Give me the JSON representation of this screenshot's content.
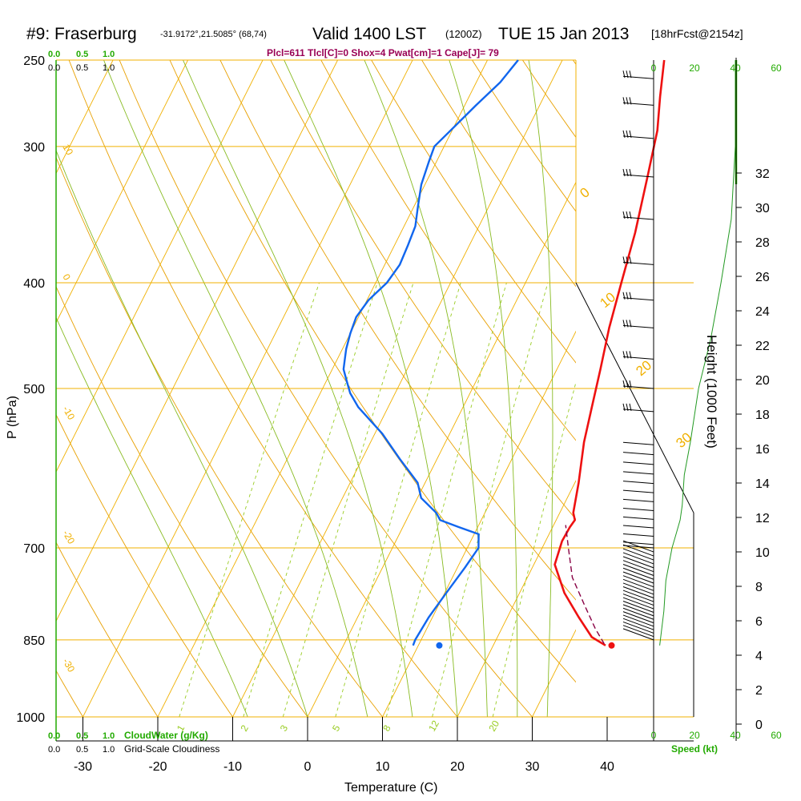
{
  "header": {
    "site": "#9: Fraserburg",
    "coords": "-31.9172°,21.5085° (68,74)",
    "valid": "Valid 1400 LST",
    "utc": "(1200Z)",
    "date": "TUE 15 Jan 2013",
    "fcst": "[18hrFcst@2154z]",
    "params": "Plcl=611 Tlcl[C]=0 Shox=4 Pwat[cm]=1 Cape[J]= 79"
  },
  "colors": {
    "temperature": "#ee1111",
    "dewpoint": "#1166ee",
    "parcel": "#880044",
    "isotherm_isobar": "#f0b000",
    "dry_adiabat": "#e8a000",
    "moist_adiabat": "#88bb22",
    "mixing_ratio": "#99cc22",
    "green_text": "#22aa00",
    "params_text": "#990055"
  },
  "chart_data": {
    "type": "line",
    "xlabel": "Temperature (C)",
    "ylabel": "P (hPa)",
    "y2label": "Height (1000 Feet)",
    "x_ticks": [
      "-30",
      "-20",
      "-10",
      "0",
      "10",
      "20",
      "30",
      "40"
    ],
    "x_tick_values": [
      -30,
      -20,
      -10,
      0,
      10,
      20,
      30,
      40
    ],
    "p_ticks": [
      "250",
      "300",
      "400",
      "500",
      "700",
      "850",
      "1000"
    ],
    "p_tick_values": [
      250,
      300,
      400,
      500,
      700,
      850,
      1000
    ],
    "height_ticks": [
      "0",
      "2",
      "4",
      "6",
      "8",
      "10",
      "12",
      "14",
      "16",
      "18",
      "20",
      "22",
      "24",
      "26",
      "28",
      "30",
      "32"
    ],
    "height_tick_values": [
      0,
      2,
      4,
      6,
      8,
      10,
      12,
      14,
      16,
      18,
      20,
      22,
      24,
      26,
      28,
      30,
      32
    ],
    "series": [
      {
        "name": "Temperature",
        "points": [
          [
            35.0,
            860
          ],
          [
            32.6,
            845
          ],
          [
            29.5,
            810
          ],
          [
            26.0,
            770
          ],
          [
            22.8,
            725
          ],
          [
            22.2,
            690
          ],
          [
            22.3,
            670
          ],
          [
            22.5,
            660
          ],
          [
            21.8,
            650
          ],
          [
            20.5,
            610
          ],
          [
            18.5,
            560
          ],
          [
            17.2,
            520
          ],
          [
            15.8,
            480
          ],
          [
            14.2,
            440
          ],
          [
            12.8,
            400
          ],
          [
            11.3,
            360
          ],
          [
            9.2,
            320
          ],
          [
            7.4,
            290
          ],
          [
            5.5,
            270
          ],
          [
            3.6,
            250
          ]
        ]
      },
      {
        "name": "Dewpoint",
        "points": [
          [
            9.3,
            860
          ],
          [
            9.2,
            850
          ],
          [
            9.5,
            810
          ],
          [
            10.2,
            770
          ],
          [
            11.0,
            730
          ],
          [
            11.5,
            700
          ],
          [
            10.6,
            680
          ],
          [
            7.5,
            670
          ],
          [
            4.5,
            660
          ],
          [
            3.5,
            650
          ],
          [
            0.5,
            630
          ],
          [
            -1.0,
            610
          ],
          [
            -5.0,
            580
          ],
          [
            -9.0,
            550
          ],
          [
            -14.0,
            520
          ],
          [
            -16.0,
            505
          ],
          [
            -17.5,
            490
          ],
          [
            -18.5,
            480
          ],
          [
            -19.0,
            470
          ],
          [
            -19.5,
            460
          ],
          [
            -20.0,
            445
          ],
          [
            -20.3,
            430
          ],
          [
            -19.8,
            415
          ],
          [
            -18.5,
            400
          ],
          [
            -18.0,
            385
          ],
          [
            -18.2,
            370
          ],
          [
            -18.5,
            355
          ],
          [
            -19.5,
            340
          ],
          [
            -20.5,
            325
          ],
          [
            -21.0,
            310
          ],
          [
            -21.3,
            300
          ],
          [
            -20.2,
            290
          ],
          [
            -18.5,
            275
          ],
          [
            -16.8,
            262
          ],
          [
            -15.9,
            250
          ]
        ]
      },
      {
        "name": "Parcel",
        "points": [
          [
            34.7,
            857
          ],
          [
            32.5,
            830
          ],
          [
            29.5,
            790
          ],
          [
            26.0,
            745
          ],
          [
            23.5,
            700
          ],
          [
            21.6,
            667
          ]
        ]
      }
    ],
    "surface_temperature": [
      35.8,
      860
    ],
    "surface_dewpoint": [
      12.8,
      860
    ],
    "isotherm_labels": [
      "10",
      "0",
      "-10",
      "-20",
      "-30",
      "0",
      "10",
      "20",
      "30"
    ],
    "mixing_ratio_labels": [
      "1",
      "2",
      "3",
      "5",
      "8",
      "12",
      "20"
    ],
    "wind_speed_ticks": [
      "0",
      "20",
      "40",
      "60"
    ],
    "wind_speed_label": "Speed (kt)",
    "wind_profile_kt": [
      [
        860,
        3
      ],
      [
        800,
        5
      ],
      [
        750,
        6
      ],
      [
        700,
        9
      ],
      [
        680,
        11
      ],
      [
        660,
        13
      ],
      [
        640,
        14
      ],
      [
        600,
        15
      ],
      [
        560,
        18
      ],
      [
        500,
        22
      ],
      [
        450,
        28
      ],
      [
        400,
        33
      ],
      [
        350,
        38
      ],
      [
        300,
        40
      ],
      [
        250,
        40
      ]
    ]
  },
  "footer": {
    "cloud_scale_top": [
      "0.0",
      "0.5",
      "1.0"
    ],
    "cloud_scale_top2": [
      "0.0",
      "0.5",
      "1.0"
    ],
    "cloud_scale_bottom": [
      "0.0",
      "0.5",
      "1.0"
    ],
    "cloud_scale_bottom2": [
      "0.0",
      "0.5",
      "1.0"
    ],
    "cloudwater_label": "CloudWater (g/Kg)",
    "cloudiness_label": "Grid-Scale Cloudiness"
  }
}
